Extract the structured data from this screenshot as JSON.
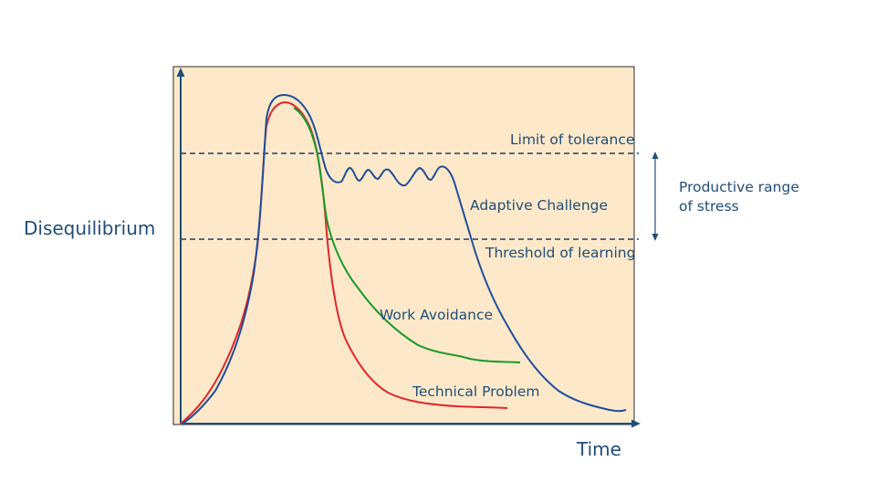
{
  "axes": {
    "y_label": "Disequilibrium",
    "x_label": "Time"
  },
  "lines": {
    "limit_label": "Limit of tolerance",
    "threshold_label": "Threshold of learning"
  },
  "productive_range": {
    "line1": "Productive range",
    "line2": "of stress"
  },
  "curves": {
    "adaptive_label": "Adaptive Challenge",
    "work_label": "Work Avoidance",
    "technical_label": "Technical Problem"
  },
  "colors": {
    "panel": "#fde9c9",
    "axis": "#1f4e79",
    "adaptive": "#1f4e9c",
    "work_avoidance": "#1a9a2a",
    "technical": "#e0262b",
    "text": "#1f4e79"
  }
}
